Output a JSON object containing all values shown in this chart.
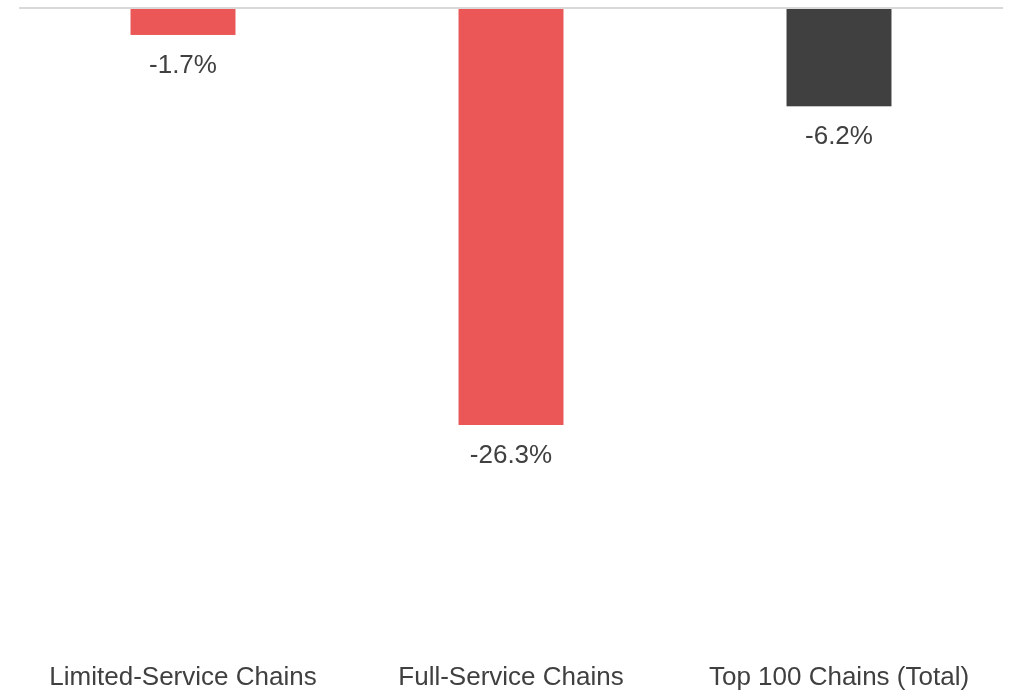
{
  "chart_data": {
    "type": "bar",
    "categories": [
      "Limited-Service Chains",
      "Full-Service Chains",
      "Top 100 Chains (Total)"
    ],
    "values": [
      -1.7,
      -26.3,
      -6.2
    ],
    "colors": [
      "#eb5757",
      "#eb5757",
      "#404040"
    ],
    "data_labels": true,
    "value_labels": [
      "-1.7%",
      "-26.3%",
      "-6.2%"
    ]
  }
}
